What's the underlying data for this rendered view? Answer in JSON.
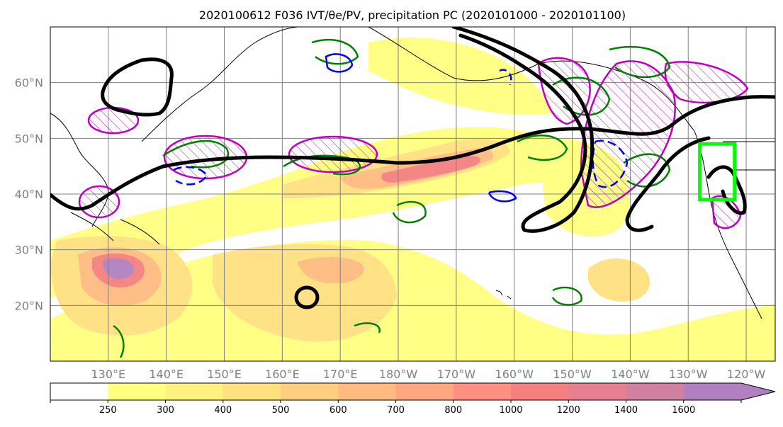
{
  "figure": {
    "title": "2020100612 F036 IVT/θe/PV, precipitation PC (2020101000 - 2020101100)"
  },
  "map": {
    "projection": "PlateCarree (central longitude 180)",
    "lon_range": [
      120,
      245
    ],
    "lat_range": [
      10,
      70
    ],
    "lat_ticks": [
      {
        "value": 20,
        "label": "20°N"
      },
      {
        "value": 30,
        "label": "30°N"
      },
      {
        "value": 40,
        "label": "40°N"
      },
      {
        "value": 50,
        "label": "50°N"
      },
      {
        "value": 60,
        "label": "60°N"
      }
    ],
    "lon_ticks": [
      {
        "value": 130,
        "label": "130°E"
      },
      {
        "value": 140,
        "label": "140°E"
      },
      {
        "value": 150,
        "label": "150°E"
      },
      {
        "value": 160,
        "label": "160°E"
      },
      {
        "value": 170,
        "label": "170°E"
      },
      {
        "value": 180,
        "label": "180°W"
      },
      {
        "value": 190,
        "label": "170°W"
      },
      {
        "value": 200,
        "label": "160°W"
      },
      {
        "value": 210,
        "label": "150°W"
      },
      {
        "value": 220,
        "label": "140°W"
      },
      {
        "value": 230,
        "label": "130°W"
      },
      {
        "value": 240,
        "label": "120°W"
      }
    ],
    "gridlines": true,
    "highlight_box": {
      "lon": [
        232,
        238
      ],
      "lat": [
        39,
        49
      ],
      "color": "#00ff00"
    },
    "colors": {
      "ivt_contour": "#000000",
      "theta_e_contour": "#008000",
      "pv_contour": "#0000ff",
      "precip_pc_contour": "#bf00bf"
    }
  },
  "colorbar": {
    "levels": [
      {
        "label": "250",
        "color": "#ffff80"
      },
      {
        "label": "300",
        "color": "#fff180"
      },
      {
        "label": "400",
        "color": "#ffe180"
      },
      {
        "label": "500",
        "color": "#ffcf80"
      },
      {
        "label": "600",
        "color": "#ffbb80"
      },
      {
        "label": "700",
        "color": "#ffa780"
      },
      {
        "label": "800",
        "color": "#ff8f80"
      },
      {
        "label": "1000",
        "color": "#f58080"
      },
      {
        "label": "1200",
        "color": "#e68090"
      },
      {
        "label": "1400",
        "color": "#d080a0"
      },
      {
        "label": "1600",
        "color": "#b080c0"
      }
    ],
    "below_color": "#ffffff",
    "extend": "max"
  }
}
